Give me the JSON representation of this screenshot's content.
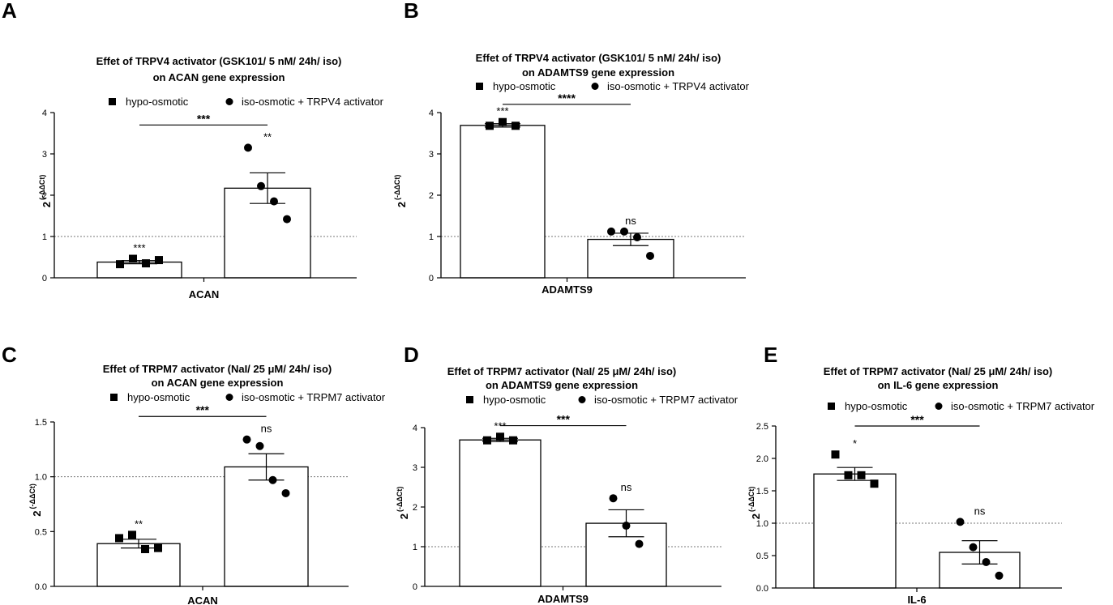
{
  "figure": {
    "legend_series": [
      "hypo-osmotic",
      "iso-osmotic + TRPV4 activator",
      "iso-osmotic + TRPM7 activator"
    ]
  },
  "chart_data": [
    {
      "panel": "A",
      "type": "bar",
      "title_line1": "Effet of TRPV4 activator (GSK101/ 5 nM/ 24h/ iso)",
      "title_line2": "on ACAN gene expression",
      "xlabel": "ACAN",
      "ylabel_base": "2",
      "ylabel_exp": "(-ΔΔCt)",
      "ylim": [
        0,
        4
      ],
      "yticks": [
        0,
        1,
        2,
        3,
        4
      ],
      "yticklabels": [
        "0",
        "1",
        "2",
        "3",
        "4"
      ],
      "reference_line": 1,
      "legend": [
        "hypo-osmotic",
        "iso-osmotic + TRPV4 activator"
      ],
      "series": [
        {
          "name": "hypo-osmotic",
          "marker": "square",
          "mean": 0.38,
          "sem": 0.04,
          "points": [
            0.33,
            0.46,
            0.35,
            0.43
          ],
          "annotation": "***"
        },
        {
          "name": "iso-osmotic + TRPV4 activator",
          "marker": "circle",
          "mean": 2.17,
          "sem": 0.37,
          "points": [
            3.15,
            2.22,
            1.85,
            1.42
          ],
          "annotation": "**"
        }
      ],
      "comparison": {
        "label": "***",
        "y": 3.7
      }
    },
    {
      "panel": "B",
      "type": "bar",
      "title_line1": "Effet of TRPV4 activator (GSK101/ 5 nM/ 24h/ iso)",
      "title_line2": "on ADAMTS9 gene expression",
      "xlabel": "ADAMTS9",
      "ylabel_base": "2",
      "ylabel_exp": "(-ΔΔCt)",
      "ylim": [
        0,
        4
      ],
      "yticks": [
        0,
        1,
        2,
        3,
        4
      ],
      "yticklabels": [
        "0",
        "1",
        "2",
        "3",
        "4"
      ],
      "reference_line": 1,
      "legend": [
        "hypo-osmotic",
        "iso-osmotic + TRPV4 activator"
      ],
      "series": [
        {
          "name": "hypo-osmotic",
          "marker": "square",
          "mean": 3.69,
          "sem": 0.04,
          "points": [
            3.68,
            3.77,
            3.68
          ],
          "annotation": "***"
        },
        {
          "name": "iso-osmotic + TRPV4 activator",
          "marker": "circle",
          "mean": 0.93,
          "sem": 0.15,
          "points": [
            1.12,
            1.12,
            0.98,
            0.53
          ],
          "annotation": "ns"
        }
      ],
      "comparison": {
        "label": "****",
        "y": 4.2
      }
    },
    {
      "panel": "C",
      "type": "bar",
      "title_line1": "Effet of TRPM7 activator (NaI/ 25 μM/ 24h/ iso)",
      "title_line2": "on ACAN gene expression",
      "xlabel": "ACAN",
      "ylabel_base": "2",
      "ylabel_exp": "(-ΔΔCt)",
      "ylim": [
        0,
        1.5
      ],
      "yticks": [
        0,
        0.5,
        1.0,
        1.5
      ],
      "yticklabels": [
        "0.0",
        "0.5",
        "1.0",
        "1.5"
      ],
      "reference_line": 1,
      "legend": [
        "hypo-osmotic",
        "iso-osmotic + TRPM7 activator"
      ],
      "series": [
        {
          "name": "hypo-osmotic",
          "marker": "square",
          "mean": 0.39,
          "sem": 0.04,
          "points": [
            0.44,
            0.47,
            0.34,
            0.35
          ],
          "annotation": "**"
        },
        {
          "name": "iso-osmotic + TRPM7 activator",
          "marker": "circle",
          "mean": 1.09,
          "sem": 0.12,
          "points": [
            1.34,
            1.28,
            0.97,
            0.85
          ],
          "annotation": "ns"
        }
      ],
      "comparison": {
        "label": "***",
        "y": 1.55
      }
    },
    {
      "panel": "D",
      "type": "bar",
      "title_line1": "Effet of TRPM7 activator (NaI/ 25 μM/ 24h/ iso)",
      "title_line2": "on ADAMTS9 gene expression",
      "xlabel": "ADAMTS9",
      "ylabel_base": "2",
      "ylabel_exp": "(-ΔΔCt)",
      "ylim": [
        0,
        4
      ],
      "yticks": [
        0,
        1,
        2,
        3,
        4
      ],
      "yticklabels": [
        "0",
        "1",
        "2",
        "3",
        "4"
      ],
      "reference_line": 1,
      "legend": [
        "hypo-osmotic",
        "iso-osmotic + TRPM7 activator"
      ],
      "series": [
        {
          "name": "hypo-osmotic",
          "marker": "square",
          "mean": 3.69,
          "sem": 0.04,
          "points": [
            3.68,
            3.77,
            3.68
          ],
          "annotation": "***"
        },
        {
          "name": "iso-osmotic + TRPM7 activator",
          "marker": "circle",
          "mean": 1.59,
          "sem": 0.34,
          "points": [
            2.22,
            1.53,
            1.07
          ],
          "annotation": "ns"
        }
      ],
      "comparison": {
        "label": "***",
        "y": 4.05
      }
    },
    {
      "panel": "E",
      "type": "bar",
      "title_line1": "Effet of TRPM7 activator (NaI/ 25 μM/ 24h/ iso)",
      "title_line2": "on IL-6 gene expression",
      "xlabel": "IL-6",
      "ylabel_base": "2",
      "ylabel_exp": "(-ΔΔCt)",
      "ylim": [
        0,
        2.5
      ],
      "yticks": [
        0,
        0.5,
        1.0,
        1.5,
        2.0,
        2.5
      ],
      "yticklabels": [
        "0.0",
        "0.5",
        "1.0",
        "1.5",
        "2.0",
        "2.5"
      ],
      "reference_line": 1,
      "legend": [
        "hypo-osmotic",
        "iso-osmotic + TRPM7 activator"
      ],
      "series": [
        {
          "name": "hypo-osmotic",
          "marker": "square",
          "mean": 1.76,
          "sem": 0.1,
          "points": [
            2.06,
            1.74,
            1.74,
            1.61
          ],
          "annotation": "*"
        },
        {
          "name": "iso-osmotic + TRPM7 activator",
          "marker": "circle",
          "mean": 0.55,
          "sem": 0.18,
          "points": [
            1.02,
            0.63,
            0.4,
            0.19
          ],
          "annotation": "ns"
        }
      ],
      "comparison": {
        "label": "***",
        "y": 2.5
      }
    }
  ]
}
